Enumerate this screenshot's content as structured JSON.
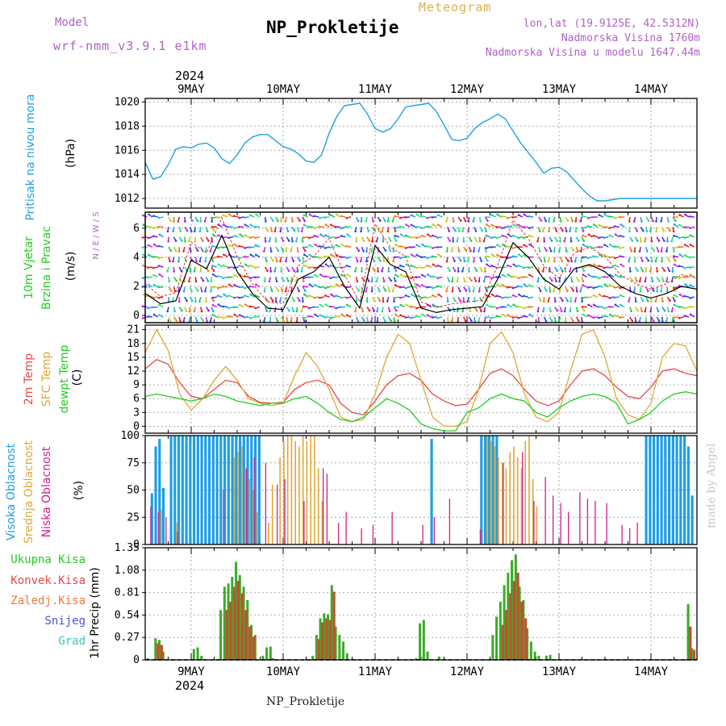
{
  "header": {
    "model_label": "Model",
    "model_version": "wrf-nmm_v3.9.1 e1km",
    "meteogram_label": "Meteogram",
    "title": "NP_Prokletije",
    "lonlat": "lon,lat (19.9125E, 42.5312N)",
    "elevation": "Nadmorska Visina 1760m",
    "model_elevation": "Nadmorska Visina u modelu 1647.44m"
  },
  "footer": {
    "station_name": "NP_Prokletije",
    "made_by": "made by Angel"
  },
  "time_axis": {
    "year": "2024",
    "days": [
      "9MAY",
      "10MAY",
      "11MAY",
      "12MAY",
      "13MAY",
      "14MAY"
    ]
  },
  "colors": {
    "pressure": "#1ea0e6",
    "wind_speed": "#000000",
    "gust": "#e83030",
    "temp_2m": "#e84848",
    "temp_sfc": "#e0a838",
    "dewpoint": "#22cc22",
    "high_cloud": "#1e9ee6",
    "mid_cloud": "#e0a838",
    "low_cloud": "#d0208a",
    "precip_total": "#3caa28",
    "precip_conv": "#d04830"
  },
  "chart_data": [
    {
      "type": "line",
      "panel": "pressure",
      "ylabel_1": "Pritisak na nivou mora",
      "ylabel_2": "(hPa)",
      "yticks": [
        1012,
        1014,
        1016,
        1018,
        1020
      ],
      "ylim": [
        1011.2,
        1020.3
      ],
      "xlim_hours": [
        0,
        144
      ],
      "series": [
        {
          "x": [
            0,
            2,
            4,
            6,
            8,
            10,
            12,
            14,
            16,
            18,
            20,
            22,
            24,
            26,
            28,
            30,
            32,
            34,
            36,
            38,
            40,
            42,
            44,
            46,
            48,
            50,
            52,
            54,
            56,
            58,
            60,
            62,
            64,
            66,
            68,
            70,
            72,
            74,
            76,
            78,
            80,
            82,
            84,
            86,
            88,
            90,
            92,
            94,
            96,
            98,
            100,
            102,
            104,
            106,
            108,
            110,
            112,
            114,
            116,
            118,
            120,
            122,
            124,
            126,
            128,
            130,
            132,
            134,
            136,
            138,
            140,
            142,
            144
          ],
          "values": [
            1015.0,
            1013.6,
            1013.8,
            1014.8,
            1016.1,
            1016.3,
            1016.2,
            1016.5,
            1016.6,
            1016.2,
            1015.3,
            1014.9,
            1015.6,
            1016.6,
            1017.1,
            1017.3,
            1017.3,
            1016.8,
            1016.3,
            1016.1,
            1015.7,
            1015.1,
            1015.0,
            1015.6,
            1017.4,
            1018.8,
            1019.7,
            1019.8,
            1019.9,
            1019.0,
            1017.8,
            1017.5,
            1017.8,
            1018.6,
            1019.6,
            1019.7,
            1019.8,
            1019.9,
            1019.2,
            1018.1,
            1016.9,
            1016.8,
            1017.0,
            1017.8,
            1018.3,
            1018.6,
            1019.0,
            1018.6,
            1017.6,
            1016.6,
            1015.8,
            1015.0,
            1014.1,
            1014.5,
            1014.6,
            1014.2,
            1013.5,
            1012.8,
            1012.2,
            1011.8,
            1011.8,
            1011.9,
            1012.0,
            1012.0,
            1012.0,
            1012.0,
            1012.0,
            1012.0,
            1012.0,
            1012.0,
            1012.0,
            1012.0,
            1012.0
          ]
        }
      ]
    },
    {
      "type": "line",
      "panel": "wind",
      "ylabel_1": "10m Vjetar",
      "ylabel_2": "Brzina i Pravac",
      "ylabel_3": "(m/s)",
      "compass_label": "N / E / W / S",
      "yticks": [
        0,
        2,
        4,
        6
      ],
      "ylim": [
        -0.5,
        7.1
      ],
      "series": [
        {
          "name": "speed",
          "x": [
            0,
            4,
            8,
            12,
            16,
            20,
            24,
            28,
            32,
            36,
            40,
            44,
            48,
            52,
            56,
            60,
            64,
            68,
            72,
            76,
            80,
            84,
            88,
            92,
            96,
            100,
            104,
            108,
            112,
            116,
            120,
            124,
            128,
            132,
            136,
            140,
            144
          ],
          "values": [
            1.5,
            0.8,
            1.0,
            3.8,
            3.2,
            5.5,
            3.0,
            1.5,
            0.5,
            0.4,
            2.5,
            3.0,
            4.0,
            2.0,
            0.5,
            4.8,
            3.5,
            3.0,
            0.5,
            0.2,
            0.4,
            0.5,
            0.6,
            2.5,
            5.0,
            4.0,
            2.5,
            1.8,
            3.2,
            3.5,
            3.0,
            2.0,
            1.5,
            1.2,
            1.5,
            2.0,
            1.8
          ]
        }
      ]
    },
    {
      "type": "line",
      "panel": "temperature",
      "ylabel_1": "2m Temp",
      "ylabel_2": "SFC Temp",
      "ylabel_3": "dewpt Temp",
      "ylabel_4": "(C)",
      "yticks": [
        0,
        3,
        6,
        9,
        12,
        15,
        18,
        21
      ],
      "ylim": [
        -1.5,
        22
      ],
      "series": [
        {
          "name": "2m Temp",
          "x": [
            0,
            3,
            6,
            9,
            12,
            15,
            18,
            21,
            24,
            27,
            30,
            33,
            36,
            39,
            42,
            45,
            48,
            51,
            54,
            57,
            60,
            63,
            66,
            69,
            72,
            75,
            78,
            81,
            84,
            87,
            90,
            93,
            96,
            99,
            102,
            105,
            108,
            111,
            114,
            117,
            120,
            123,
            126,
            129,
            132,
            135,
            138,
            141,
            144
          ],
          "values": [
            12.5,
            14.5,
            13.5,
            9.5,
            6.5,
            6.0,
            8.0,
            10.0,
            9.5,
            6.5,
            5.2,
            5.0,
            5.2,
            8.0,
            9.5,
            10.0,
            9.0,
            5.0,
            3.0,
            2.5,
            5.5,
            9.0,
            11.0,
            11.5,
            10.0,
            7.0,
            5.5,
            4.5,
            4.8,
            8.0,
            11.5,
            12.5,
            11.0,
            8.0,
            5.5,
            4.5,
            5.5,
            9.0,
            12.0,
            12.5,
            11.0,
            8.5,
            6.5,
            6.0,
            8.5,
            12.0,
            12.5,
            11.5,
            11.0
          ]
        },
        {
          "name": "SFC Temp",
          "x": [
            0,
            3,
            6,
            9,
            12,
            15,
            18,
            21,
            24,
            27,
            30,
            33,
            36,
            39,
            42,
            45,
            48,
            51,
            54,
            57,
            60,
            63,
            66,
            69,
            72,
            75,
            78,
            81,
            84,
            87,
            90,
            93,
            96,
            99,
            102,
            105,
            108,
            111,
            114,
            117,
            120,
            123,
            126,
            129,
            132,
            135,
            138,
            141,
            144
          ],
          "values": [
            16.0,
            21.0,
            16.5,
            7.0,
            3.5,
            6.0,
            10.0,
            13.0,
            10.0,
            6.0,
            5.0,
            4.5,
            5.0,
            11.0,
            16.0,
            13.0,
            8.0,
            2.0,
            1.0,
            1.5,
            7.0,
            15.0,
            20.0,
            18.0,
            10.0,
            2.0,
            0.0,
            0.0,
            1.0,
            8.0,
            18.0,
            20.5,
            16.0,
            7.0,
            2.0,
            1.0,
            3.0,
            12.0,
            20.0,
            21.0,
            15.0,
            6.0,
            2.5,
            1.5,
            5.0,
            15.0,
            18.0,
            17.5,
            12.0
          ]
        },
        {
          "name": "dewpt Temp",
          "x": [
            0,
            3,
            6,
            9,
            12,
            15,
            18,
            21,
            24,
            27,
            30,
            33,
            36,
            39,
            42,
            45,
            48,
            51,
            54,
            57,
            60,
            63,
            66,
            69,
            72,
            75,
            78,
            81,
            84,
            87,
            90,
            93,
            96,
            99,
            102,
            105,
            108,
            111,
            114,
            117,
            120,
            123,
            126,
            129,
            132,
            135,
            138,
            141,
            144
          ],
          "values": [
            6.5,
            7.0,
            6.5,
            6.0,
            5.5,
            6.0,
            7.0,
            6.5,
            5.5,
            5.0,
            4.5,
            5.0,
            5.0,
            6.0,
            6.5,
            5.0,
            3.0,
            1.5,
            1.0,
            2.0,
            4.0,
            6.0,
            5.0,
            3.5,
            0.5,
            -0.5,
            -1.0,
            -1.0,
            3.0,
            4.0,
            6.0,
            7.0,
            6.0,
            5.5,
            3.0,
            2.0,
            4.0,
            5.5,
            6.5,
            7.0,
            6.5,
            5.0,
            0.5,
            1.5,
            3.0,
            5.5,
            7.0,
            7.5,
            7.0
          ]
        }
      ]
    },
    {
      "type": "bar",
      "panel": "cloud",
      "ylabel_1": "Visoka Oblacnost",
      "ylabel_2": "Srednja Oblacnost",
      "ylabel_3": "Niska Oblacnost",
      "ylabel_4": "(%)",
      "yticks": [
        0,
        25,
        50,
        75,
        100
      ],
      "ylim": [
        0,
        100
      ],
      "series": [
        {
          "name": "Visoka Oblacnost",
          "x": [
            2,
            3,
            4,
            5,
            7,
            8,
            9,
            10,
            11,
            12,
            13,
            14,
            15,
            16,
            17,
            18,
            19,
            20,
            21,
            22,
            23,
            24,
            25,
            26,
            27,
            28,
            29,
            30,
            75,
            88,
            89,
            90,
            91,
            92,
            131,
            132,
            133,
            134,
            135,
            136,
            137,
            138,
            139,
            140,
            141,
            142,
            143
          ],
          "values": [
            47,
            90,
            97,
            52,
            100,
            100,
            100,
            100,
            100,
            100,
            100,
            100,
            100,
            100,
            100,
            100,
            100,
            100,
            100,
            100,
            100,
            100,
            100,
            100,
            100,
            100,
            100,
            100,
            97,
            100,
            100,
            100,
            100,
            100,
            100,
            100,
            100,
            100,
            100,
            100,
            100,
            100,
            100,
            100,
            100,
            90,
            45
          ]
        },
        {
          "name": "Srednja Oblacnost",
          "x": [
            4,
            8,
            23,
            24,
            25,
            26,
            27,
            28,
            29,
            32,
            33,
            35,
            36,
            37,
            38,
            39,
            40,
            41,
            42,
            43,
            44,
            45,
            46,
            89,
            90,
            91,
            92,
            93,
            94,
            95,
            96,
            97,
            98,
            99,
            100,
            101,
            102
          ],
          "values": [
            32,
            20,
            80,
            85,
            90,
            70,
            60,
            50,
            30,
            20,
            55,
            80,
            95,
            100,
            100,
            95,
            90,
            100,
            95,
            100,
            100,
            70,
            40,
            100,
            95,
            90,
            80,
            75,
            70,
            85,
            90,
            80,
            70,
            95,
            100,
            60,
            35
          ]
        },
        {
          "name": "Niska Oblacnost",
          "x": [
            1,
            3,
            5,
            8,
            20,
            26,
            28,
            31,
            34,
            36,
            41,
            46,
            47,
            50,
            52,
            56,
            59,
            64,
            72,
            75,
            79,
            87,
            93,
            98,
            101,
            104,
            106,
            108,
            110,
            113,
            115,
            117,
            120,
            124,
            126,
            128
          ],
          "values": [
            35,
            30,
            25,
            12,
            50,
            70,
            80,
            75,
            55,
            60,
            40,
            70,
            65,
            20,
            30,
            15,
            18,
            30,
            18,
            25,
            42,
            14,
            75,
            85,
            40,
            62,
            45,
            38,
            30,
            48,
            42,
            40,
            38,
            18,
            15,
            20
          ]
        }
      ]
    },
    {
      "type": "bar",
      "panel": "precip",
      "ylabel_1": "1hr Precip (mm)",
      "legend": [
        "Ukupna Kisa",
        "Konvek.Kisa",
        "Zaledj.Kisa",
        "Snijeg",
        "Grad"
      ],
      "yticks": [
        0,
        0.27,
        0.54,
        0.81,
        1.08,
        1.35
      ],
      "ylim": [
        0,
        1.35
      ],
      "series": [
        {
          "name": "Ukupna Kisa",
          "x": [
            1,
            3,
            4,
            5,
            13,
            14,
            15,
            20,
            21,
            22,
            23,
            24,
            25,
            26,
            27,
            28,
            29,
            31,
            32,
            33,
            33.6,
            44,
            45,
            46,
            47,
            48,
            49,
            50,
            51,
            52,
            53,
            71,
            72,
            73,
            74,
            77,
            91,
            92,
            93,
            94,
            95,
            96,
            97,
            98,
            99,
            100,
            101,
            102,
            103,
            105,
            106,
            142,
            143
          ],
          "values": [
            0.02,
            0.26,
            0.24,
            0.1,
            0.13,
            0.15,
            0.05,
            0.6,
            0.88,
            0.92,
            1.0,
            1.18,
            1.02,
            0.88,
            0.72,
            0.42,
            0.3,
            0.05,
            0.15,
            0.16,
            0.02,
            0.05,
            0.3,
            0.5,
            0.56,
            0.55,
            0.9,
            0.4,
            0.3,
            0.22,
            0.08,
            0.02,
            0.44,
            0.48,
            0.1,
            0.04,
            0.3,
            0.52,
            0.7,
            0.9,
            1.05,
            1.2,
            1.27,
            0.88,
            0.72,
            0.38,
            0.22,
            0.1,
            0.05,
            0.05,
            0.06,
            0.67,
            0.14
          ]
        },
        {
          "name": "Konvek.Kisa",
          "x": [
            3,
            4,
            21,
            22,
            23,
            24,
            25,
            26,
            27,
            28,
            45,
            46,
            47,
            48,
            49,
            93,
            94,
            95,
            96,
            97,
            98,
            99,
            142,
            143
          ],
          "values": [
            0.2,
            0.18,
            0.6,
            0.7,
            0.88,
            0.95,
            0.8,
            0.6,
            0.4,
            0.28,
            0.25,
            0.45,
            0.5,
            0.48,
            0.82,
            0.42,
            0.6,
            0.8,
            0.95,
            1.05,
            0.7,
            0.5,
            0.4,
            0.12
          ]
        }
      ]
    }
  ]
}
